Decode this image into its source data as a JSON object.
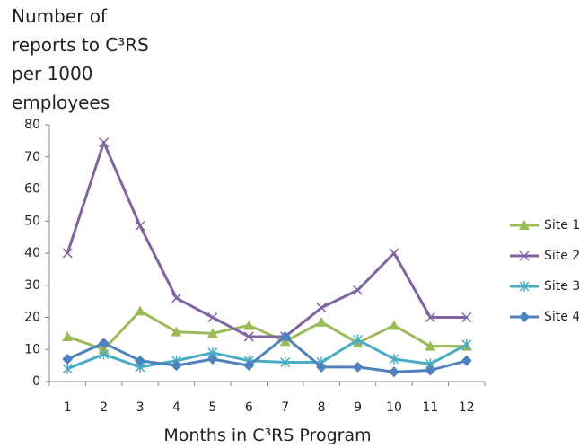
{
  "chart_data": {
    "type": "line",
    "title": "Number of reports to C³RS per 1000 employees",
    "x_label": "Months in C³RS Program",
    "categories": [
      1,
      2,
      3,
      4,
      5,
      6,
      7,
      8,
      9,
      10,
      11,
      12
    ],
    "ylim": [
      0,
      80
    ],
    "yticks": [
      0,
      10,
      20,
      30,
      40,
      50,
      60,
      70,
      80
    ],
    "grid": false,
    "legend": "right",
    "series": [
      {
        "name": "Site 1",
        "color": "#9bbb59",
        "marker": "triangle",
        "values": [
          14,
          10,
          22,
          15.5,
          15,
          17.5,
          12.5,
          18.5,
          12,
          17.5,
          11,
          11
        ]
      },
      {
        "name": "Site 2",
        "color": "#8064a2",
        "marker": "x",
        "values": [
          40,
          74.5,
          48.5,
          26,
          20,
          14,
          14,
          23,
          28.5,
          40,
          20,
          20
        ]
      },
      {
        "name": "Site 3",
        "color": "#4bacc6",
        "marker": "star",
        "values": [
          4,
          8.5,
          4.5,
          6.5,
          9,
          6.5,
          6,
          6,
          13,
          7,
          5.5,
          11.5
        ]
      },
      {
        "name": "Site 4",
        "color": "#4f81bd",
        "marker": "diamond",
        "values": [
          7,
          12,
          6.5,
          5,
          7,
          5,
          14,
          4.5,
          4.5,
          3,
          3.5,
          6.5
        ]
      }
    ]
  }
}
